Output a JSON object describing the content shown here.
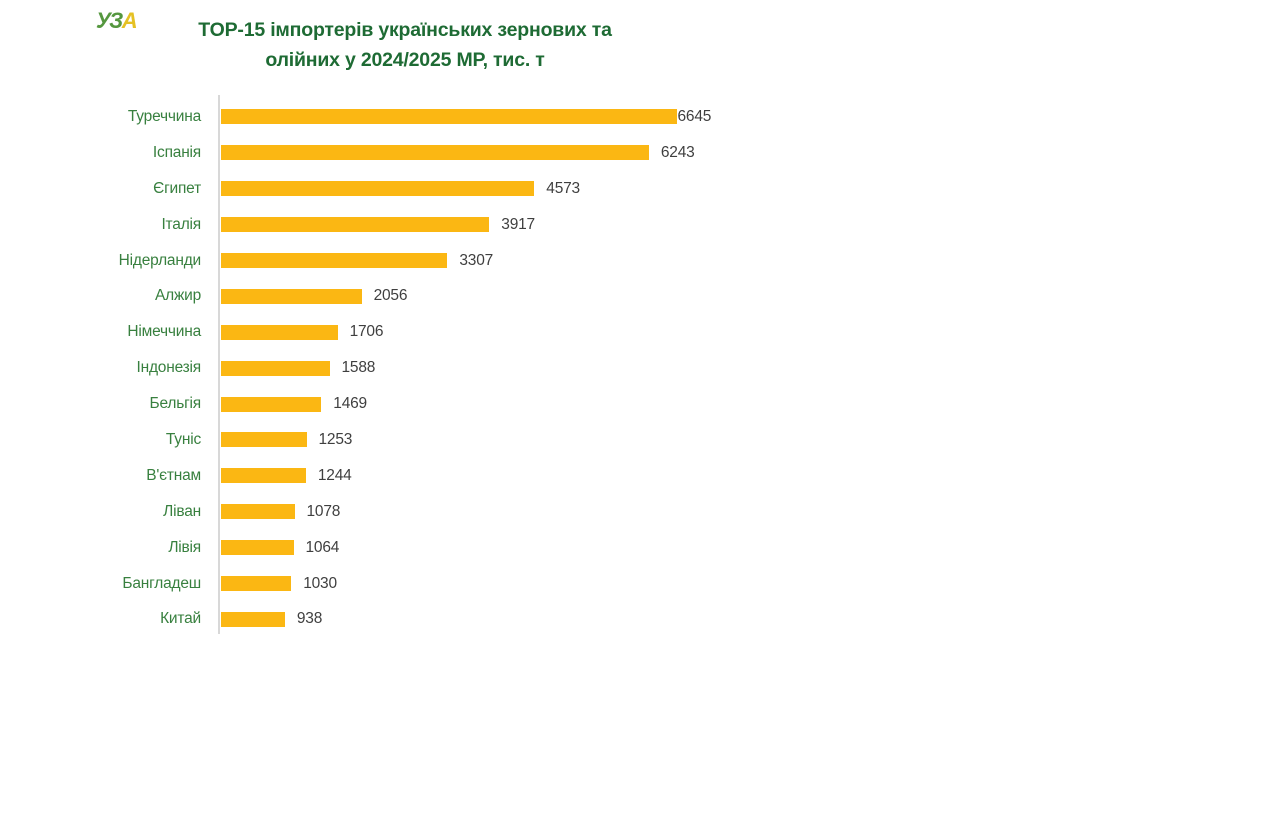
{
  "header": {
    "logo_uz": "УЗ",
    "logo_a": "А",
    "title_line1": "TOP-15 імпортерів українських зернових та",
    "title_line2": "олійних у 2024/2025 МР, тис. т"
  },
  "chart_data": {
    "type": "bar",
    "orientation": "horizontal",
    "title": "TOP-15 імпортерів українських зернових та олійних у 2024/2025 МР, тис. т",
    "unit": "тис. т",
    "categories": [
      "Туреччина",
      "Іспанія",
      "Єгипет",
      "Італія",
      "Нідерланди",
      "Алжир",
      "Німеччина",
      "Індонезія",
      "Бельгія",
      "Туніс",
      "В'єтнам",
      "Ліван",
      "Лівія",
      "Бангладеш",
      "Китай"
    ],
    "values": [
      6645,
      6243,
      4573,
      3917,
      3307,
      2056,
      1706,
      1588,
      1469,
      1253,
      1244,
      1078,
      1064,
      1030,
      938
    ],
    "xlim": [
      0,
      6645
    ],
    "grid": false,
    "legend": false,
    "value_labels": "outside-end",
    "colors": {
      "bar": "#fbb713",
      "category_label": "#38803f",
      "value_label": "#3f3f3f",
      "title": "#1e6b34",
      "axis_line": "#d8d8d8"
    }
  }
}
